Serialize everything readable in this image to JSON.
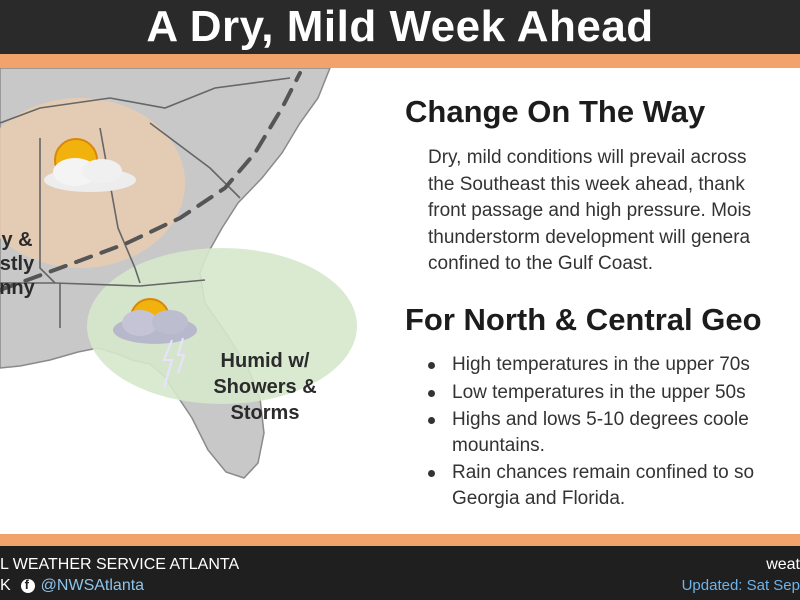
{
  "header": {
    "title": "A Dry, Mild Week Ahead"
  },
  "map": {
    "region_north_label_lines": [
      "y &",
      "stly",
      "nny"
    ],
    "region_south_label_lines": [
      "Humid w/",
      "Showers &",
      "Storms"
    ],
    "colors": {
      "land": "#c8c8c8",
      "dry_zone": "#e9ccb0",
      "humid_zone": "#d6e8cc",
      "front": "#555555"
    },
    "icons": [
      "sun-cloud-icon",
      "thunderstorm-icon"
    ]
  },
  "content": {
    "section1_title": "Change On The Way",
    "section1_lines": [
      "Dry, mild conditions will prevail across",
      "the Southeast this week ahead, thank",
      "front passage and high pressure. Mois",
      "thunderstorm development will genera",
      "confined to the Gulf Coast."
    ],
    "section2_title": "For North & Central Geo",
    "bullets": [
      {
        "line1": "High temperatures in the upper 70s",
        "line2": ""
      },
      {
        "line1": "Low temperatures in the upper 50s",
        "line2": ""
      },
      {
        "line1": "Highs and lows 5-10 degrees coole",
        "line2": "mountains."
      },
      {
        "line1": "Rain chances remain confined to so",
        "line2": "Georgia and Florida."
      }
    ]
  },
  "footer": {
    "office": "L WEATHER SERVICE ATLANTA",
    "social_prefix": "K",
    "social_handle": "@NWSAtlanta",
    "right_top": "weat",
    "updated": "Updated: Sat Sep"
  }
}
